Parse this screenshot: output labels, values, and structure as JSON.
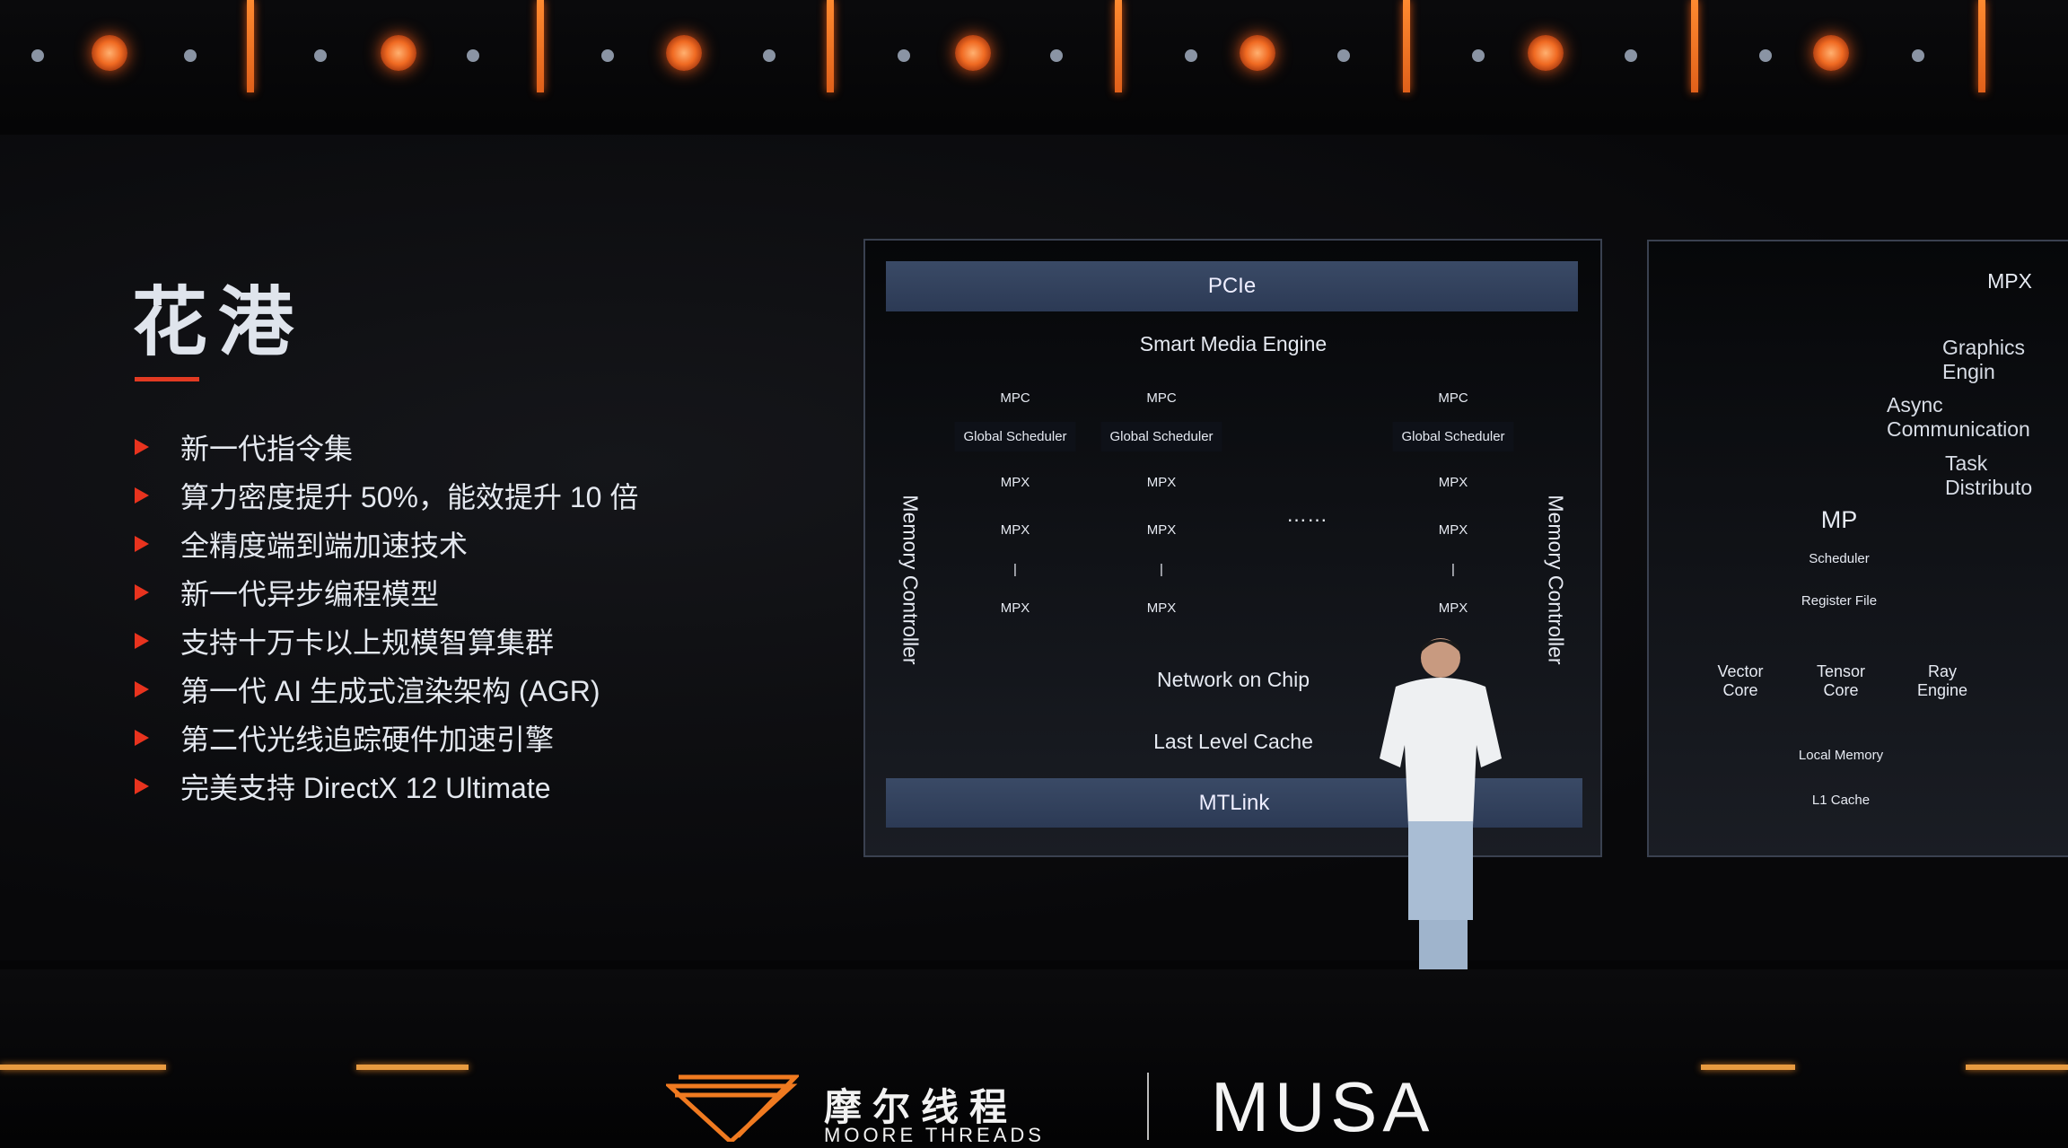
{
  "slide": {
    "title": "花港",
    "bullets": [
      "新一代指令集",
      "算力密度提升 50%，能效提升 10 倍",
      "全精度端到端加速技术",
      "新一代异步编程模型",
      "支持十万卡以上规模智算集群",
      "第一代 AI 生成式渲染架构 (AGR)",
      "第二代光线追踪硬件加速引擎",
      "完美支持 DirectX 12 Ultimate"
    ],
    "accent_color": "#e23a22"
  },
  "chip_diagram": {
    "top_bar": "PCIe",
    "smart_media": "Smart Media Engine",
    "columns": [
      {
        "mpc": "MPC",
        "scheduler": "Global Scheduler",
        "mpx": [
          "MPX",
          "MPX",
          "|",
          "MPX"
        ]
      },
      {
        "mpc": "MPC",
        "scheduler": "Global Scheduler",
        "mpx": [
          "MPX",
          "MPX",
          "|",
          "MPX"
        ]
      },
      {
        "mpc": "MPC",
        "scheduler": "Global Scheduler",
        "mpx": [
          "MPX",
          "MPX",
          "|",
          "MPX"
        ]
      }
    ],
    "ellipsis": "……",
    "memory_left": "Memory Controller",
    "memory_right": "Memory Controller",
    "noc": "Network on Chip",
    "llc": "Last Level Cache",
    "bottom_bar": "MTLink"
  },
  "mpx_diagram": {
    "title": "MPX",
    "graphics": "Graphics Engin",
    "async": "Async Communication",
    "task": "Task Distributo",
    "mp": "MP",
    "scheduler": "Scheduler",
    "register": "Register File",
    "vector": "Vector Core",
    "tensor": "Tensor Core",
    "ray": "Ray Engine",
    "local": "Local Memory",
    "l1": "L1 Cache"
  },
  "branding": {
    "cn": "摩尔线程",
    "en": "MOORE THREADS",
    "product": "MUSA",
    "brand_color": "#f07a20"
  }
}
